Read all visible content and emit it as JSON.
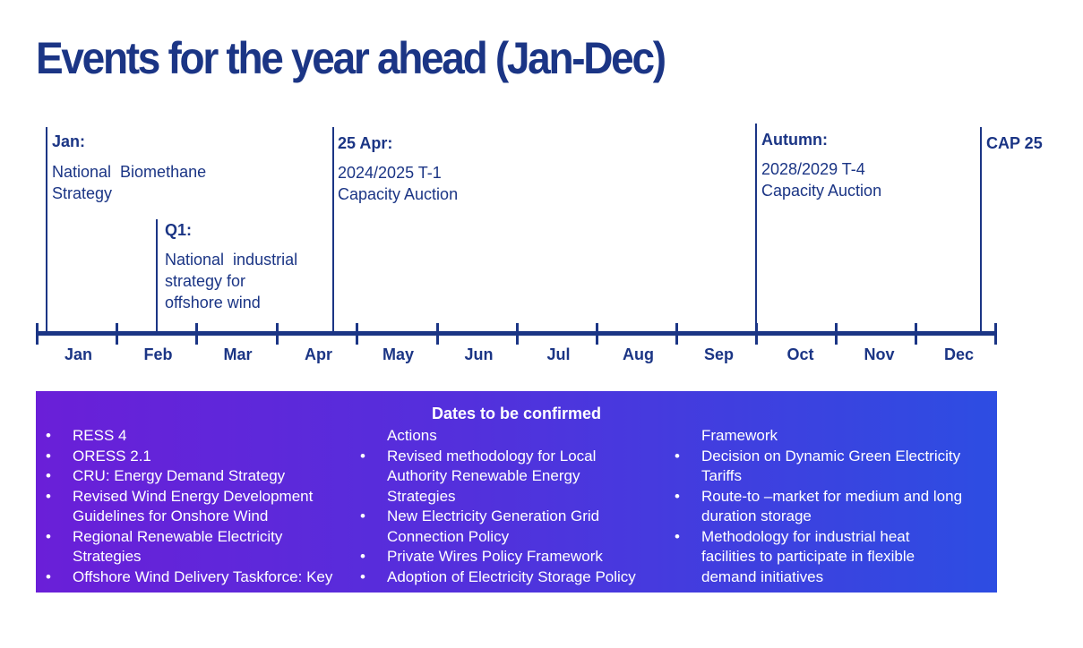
{
  "title": "Events for the year ahead (Jan-Dec)",
  "events": [
    {
      "head": "Jan:",
      "lines": [
        "National  Biomethane",
        "Strategy"
      ]
    },
    {
      "head": "Q1:",
      "lines": [
        "National  industrial",
        "strategy for",
        "offshore wind"
      ]
    },
    {
      "head": "25 Apr:",
      "lines": [
        "2024/2025 T-1",
        "Capacity Auction"
      ]
    },
    {
      "head": "Autumn:",
      "lines": [
        "2028/2029 T-4",
        "Capacity Auction"
      ]
    },
    {
      "head": "CAP 25",
      "lines": []
    }
  ],
  "months": [
    "Jan",
    "Feb",
    "Mar",
    "Apr",
    "May",
    "Jun",
    "Jul",
    "Aug",
    "Sep",
    "Oct",
    "Nov",
    "Dec"
  ],
  "tbc": {
    "title": "Dates to be confirmed",
    "columns": [
      [
        {
          "bullet": true,
          "text": "RESS 4"
        },
        {
          "bullet": true,
          "text": "ORESS 2.1"
        },
        {
          "bullet": true,
          "text": "CRU: Energy Demand Strategy"
        },
        {
          "bullet": true,
          "text": "Revised Wind Energy Development"
        },
        {
          "bullet": false,
          "text": "Guidelines for Onshore Wind"
        },
        {
          "bullet": true,
          "text": "Regional Renewable Electricity"
        },
        {
          "bullet": false,
          "text": "Strategies"
        },
        {
          "bullet": true,
          "text": "Offshore Wind Delivery Taskforce: Key"
        }
      ],
      [
        {
          "bullet": false,
          "text": "Actions"
        },
        {
          "bullet": true,
          "text": "Revised methodology for Local"
        },
        {
          "bullet": false,
          "text": "Authority Renewable Energy"
        },
        {
          "bullet": false,
          "text": "Strategies"
        },
        {
          "bullet": true,
          "text": "New Electricity Generation Grid"
        },
        {
          "bullet": false,
          "text": "Connection Policy"
        },
        {
          "bullet": true,
          "text": "Private Wires Policy Framework"
        },
        {
          "bullet": true,
          "text": "Adoption of Electricity Storage Policy"
        }
      ],
      [
        {
          "bullet": false,
          "text": "Framework"
        },
        {
          "bullet": true,
          "text": "Decision on Dynamic Green Electricity"
        },
        {
          "bullet": false,
          "text": "Tariffs"
        },
        {
          "bullet": true,
          "text": "Route-to –market for medium and long"
        },
        {
          "bullet": false,
          "text": "duration storage"
        },
        {
          "bullet": true,
          "text": "Methodology for industrial heat"
        },
        {
          "bullet": false,
          "text": "facilities to participate in flexible"
        },
        {
          "bullet": false,
          "text": "demand initiatives"
        }
      ]
    ]
  }
}
